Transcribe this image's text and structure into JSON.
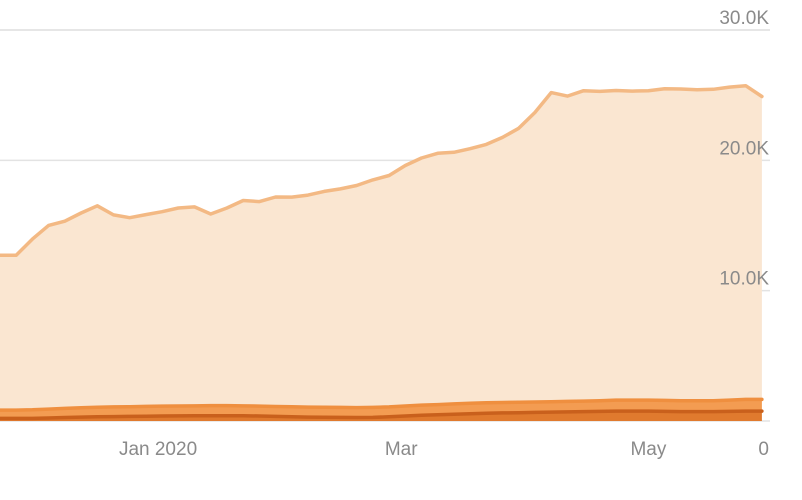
{
  "chart_data": {
    "type": "area",
    "stacked": true,
    "grid": true,
    "y_axis_position": "right",
    "legend": "none",
    "ylim": [
      0,
      30000
    ],
    "y_ticks": [
      {
        "value": 0,
        "label": "0"
      },
      {
        "value": 10000,
        "label": "10.0K"
      },
      {
        "value": 20000,
        "label": "20.0K"
      },
      {
        "value": 30000,
        "label": "30.0K"
      }
    ],
    "xlim": [
      "2019-11-23",
      "2020-05-31"
    ],
    "x_ticks": [
      {
        "date": "2020-01-01",
        "label": "Jan 2020"
      },
      {
        "date": "2020-03-01",
        "label": "Mar"
      },
      {
        "date": "2020-05-01",
        "label": "May"
      }
    ],
    "dates": [
      "2019-11-23",
      "2019-11-27",
      "2019-12-01",
      "2019-12-05",
      "2019-12-09",
      "2019-12-13",
      "2019-12-17",
      "2019-12-21",
      "2019-12-25",
      "2019-12-29",
      "2020-01-02",
      "2020-01-06",
      "2020-01-10",
      "2020-01-14",
      "2020-01-18",
      "2020-01-22",
      "2020-01-26",
      "2020-01-30",
      "2020-02-03",
      "2020-02-07",
      "2020-02-11",
      "2020-02-15",
      "2020-02-19",
      "2020-02-23",
      "2020-02-27",
      "2020-03-02",
      "2020-03-06",
      "2020-03-10",
      "2020-03-14",
      "2020-03-18",
      "2020-03-22",
      "2020-03-26",
      "2020-03-30",
      "2020-04-03",
      "2020-04-07",
      "2020-04-11",
      "2020-04-15",
      "2020-04-19",
      "2020-04-23",
      "2020-04-27",
      "2020-05-01",
      "2020-05-05",
      "2020-05-09",
      "2020-05-13",
      "2020-05-17",
      "2020-05-21",
      "2020-05-25",
      "2020-05-29"
    ],
    "series": [
      {
        "color": "#e07a2e",
        "stroke": "#c9601c",
        "values": [
          200,
          200,
          200,
          230,
          270,
          300,
          320,
          340,
          350,
          360,
          380,
          390,
          400,
          410,
          410,
          400,
          380,
          350,
          320,
          300,
          290,
          280,
          270,
          280,
          320,
          380,
          440,
          480,
          520,
          560,
          600,
          620,
          640,
          660,
          680,
          700,
          720,
          740,
          760,
          760,
          760,
          740,
          720,
          720,
          720,
          740,
          760,
          760
        ]
      },
      {
        "color": "#f39c52",
        "stroke": "#ef8f3f",
        "values": [
          640,
          640,
          660,
          680,
          700,
          720,
          730,
          740,
          750,
          760,
          760,
          760,
          760,
          770,
          770,
          760,
          760,
          760,
          770,
          770,
          760,
          760,
          760,
          760,
          760,
          770,
          780,
          780,
          790,
          800,
          800,
          800,
          800,
          800,
          800,
          800,
          810,
          820,
          840,
          840,
          840,
          840,
          840,
          840,
          840,
          860,
          900,
          900
        ]
      },
      {
        "color": "#fae6d1",
        "stroke": "#f3b984",
        "values": [
          11870,
          11880,
          13100,
          14100,
          14360,
          14940,
          15460,
          14730,
          14500,
          14720,
          14920,
          15190,
          15270,
          14700,
          15160,
          15760,
          15690,
          16080,
          16090,
          16260,
          16570,
          16770,
          17040,
          17460,
          17760,
          18450,
          18960,
          19280,
          19310,
          19530,
          19820,
          20340,
          21020,
          22210,
          23720,
          23430,
          23810,
          23730,
          23760,
          23710,
          23740,
          23910,
          23910,
          23850,
          23890,
          24020,
          24070,
          23240
        ]
      }
    ]
  }
}
